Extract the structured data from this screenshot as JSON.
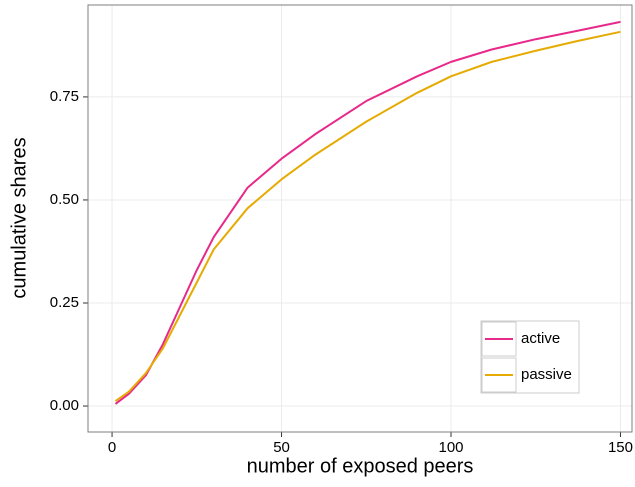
{
  "chart_data": {
    "type": "line",
    "x_label": "number of exposed peers",
    "y_label": "cumulative shares",
    "xlim": [
      -7.1,
      153.4
    ],
    "ylim": [
      -0.063,
      0.973
    ],
    "xticks": [
      0,
      50,
      100,
      150
    ],
    "yticks": [
      {
        "value": 0,
        "label": "0.00"
      },
      0.25,
      {
        "value": 0.5,
        "label": "0.50"
      },
      0.75
    ],
    "grid": true,
    "legend": "bottom-right",
    "x": [
      1,
      5,
      10,
      15,
      20,
      25,
      30,
      40,
      50,
      60,
      75,
      90,
      100,
      112,
      125,
      137,
      150
    ],
    "series": [
      {
        "name": "active",
        "color": "#e7298a",
        "values": [
          0.005,
          0.03,
          0.075,
          0.15,
          0.24,
          0.33,
          0.41,
          0.53,
          0.6,
          0.66,
          0.74,
          0.8,
          0.835,
          0.865,
          0.89,
          0.91,
          0.932
        ]
      },
      {
        "name": "passive",
        "color": "#e6ab02",
        "values": [
          0.012,
          0.035,
          0.08,
          0.14,
          0.22,
          0.3,
          0.38,
          0.48,
          0.55,
          0.61,
          0.69,
          0.76,
          0.8,
          0.835,
          0.862,
          0.885,
          0.908
        ]
      }
    ]
  }
}
